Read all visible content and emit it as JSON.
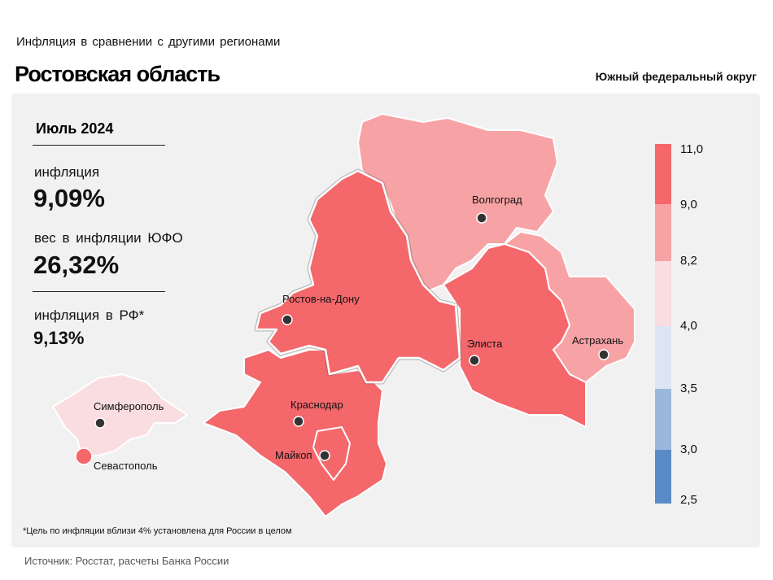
{
  "header": {
    "subtitle": "Инфляция в сравнении с другими регионами",
    "title": "Ростовская область",
    "district": "Южный федеральный округ"
  },
  "panel": {
    "month": "Июль 2024",
    "inflation_label": "инфляция",
    "inflation_value": "9,09%",
    "weight_label": "вес в инфляции ЮФО",
    "weight_value": "26,32%",
    "rf_label": "инфляция в РФ*",
    "rf_value": "9,13%"
  },
  "map": {
    "cities": [
      "Волгоград",
      "Ростов-на-Дону",
      "Элиста",
      "Астрахань",
      "Краснодар",
      "Майкоп",
      "Симферополь",
      "Севастополь"
    ]
  },
  "legend": {
    "ticks": [
      "11,0",
      "9,0",
      "8,2",
      "4,0",
      "3,5",
      "3,0",
      "2,5"
    ],
    "colors": [
      "#f4676b",
      "#f7a3a6",
      "#f9dde0",
      "#dce5f3",
      "#9ab8dc",
      "#5b8bc6"
    ]
  },
  "footnote": "*Цель по инфляции вблизи 4% установлена для России в целом",
  "source": "Источник: Росстат, расчеты Банка России"
}
